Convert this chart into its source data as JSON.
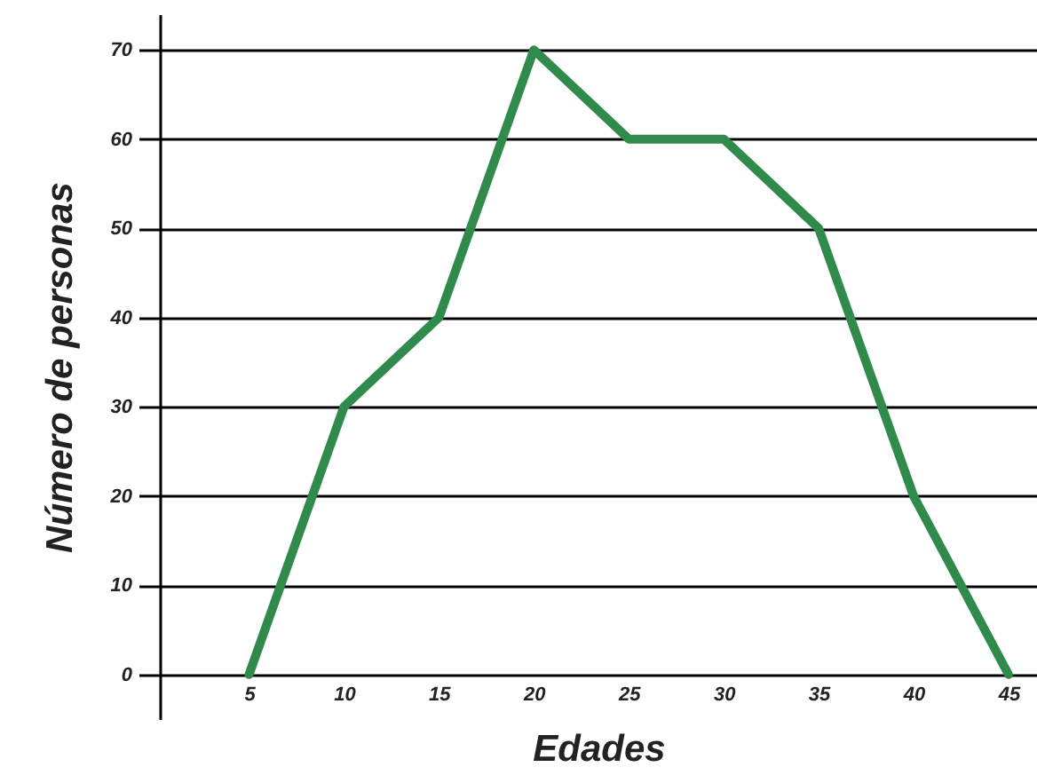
{
  "chart_data": {
    "type": "line",
    "xlabel": "Edades",
    "ylabel": "Número de personas",
    "x": [
      5,
      10,
      15,
      20,
      25,
      30,
      35,
      40,
      45
    ],
    "series": [
      {
        "color": "#2f8a4c",
        "values": [
          0,
          30,
          40,
          70,
          60,
          60,
          50,
          20,
          0
        ]
      }
    ],
    "xlim": [
      0.3,
      46.5
    ],
    "xticks": [
      5,
      10,
      15,
      20,
      25,
      30,
      35,
      40,
      45
    ],
    "ylim": [
      -5,
      74
    ],
    "yticks": [
      0,
      10,
      20,
      30,
      40,
      50,
      60,
      70
    ],
    "grid": "y",
    "marker": "none",
    "line_style": "solid"
  }
}
